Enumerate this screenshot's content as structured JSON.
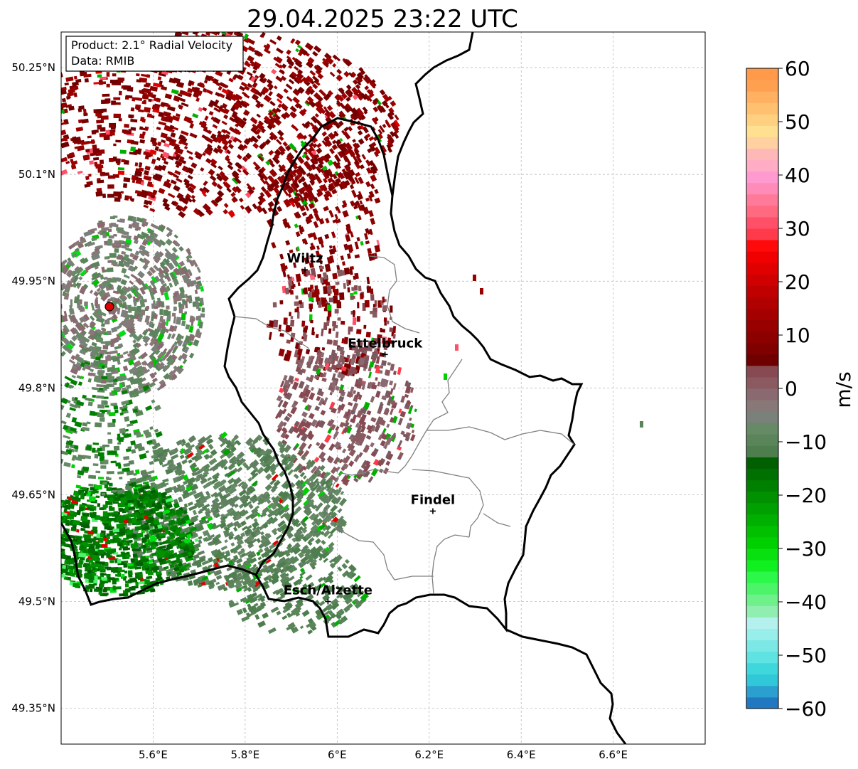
{
  "title": "29.04.2025 23:22 UTC",
  "info_box": {
    "product": "Product: 2.1° Radial Velocity",
    "data": "Data: RMIB"
  },
  "map": {
    "lon_range": [
      5.4,
      6.8
    ],
    "lat_range": [
      49.3,
      50.3
    ],
    "grid": true,
    "lon_ticks": [
      "5.6°E",
      "5.8°E",
      "6°E",
      "6.2°E",
      "6.4°E",
      "6.6°E"
    ],
    "lat_ticks": [
      "49.35°N",
      "49.5°N",
      "49.65°N",
      "49.8°N",
      "49.95°N",
      "50.1°N",
      "50.25°N"
    ],
    "radar_site_color": "#e00000",
    "cities": [
      {
        "name": "Wiltz",
        "lon": 5.93,
        "lat": 49.966
      },
      {
        "name": "Ettelbruck",
        "lon": 6.104,
        "lat": 49.847
      },
      {
        "name": "Findel",
        "lon": 6.208,
        "lat": 49.627
      },
      {
        "name": "Esch/Alzette",
        "lon": 5.98,
        "lat": 49.5
      }
    ]
  },
  "colorbar": {
    "label": "m/s",
    "min": -60,
    "max": 60,
    "ticks": [
      "60",
      "50",
      "40",
      "30",
      "20",
      "10",
      "0",
      "−10",
      "−20",
      "−30",
      "−40",
      "−50",
      "−60"
    ],
    "colors": [
      "#1f78c0",
      "#2a9fd0",
      "#30c8d8",
      "#3ed8dc",
      "#5ee2e2",
      "#7ce8e6",
      "#98eeea",
      "#b4f0ee",
      "#90eeb0",
      "#6ef08a",
      "#4cf46a",
      "#2cf84a",
      "#10f020",
      "#08e010",
      "#00d000",
      "#00c000",
      "#00b000",
      "#00a000",
      "#009000",
      "#008000",
      "#007000",
      "#006000",
      "#4e7e4e",
      "#5a845a",
      "#668a66",
      "#7a807a",
      "#887878",
      "#8a6a70",
      "#8a5a60",
      "#884a52",
      "#700000",
      "#800000",
      "#8c0000",
      "#980000",
      "#a40000",
      "#b00000",
      "#c00000",
      "#d00000",
      "#e00000",
      "#f00000",
      "#ff0a0a",
      "#ff3a4a",
      "#ff5068",
      "#ff6a80",
      "#ff7a98",
      "#ff8cb8",
      "#ff9ad0",
      "#ffacc4",
      "#ffb8b8",
      "#ffd0a0",
      "#ffe090",
      "#ffd080",
      "#ffc070",
      "#ffb060",
      "#ffa050",
      "#ff9a4a"
    ]
  }
}
